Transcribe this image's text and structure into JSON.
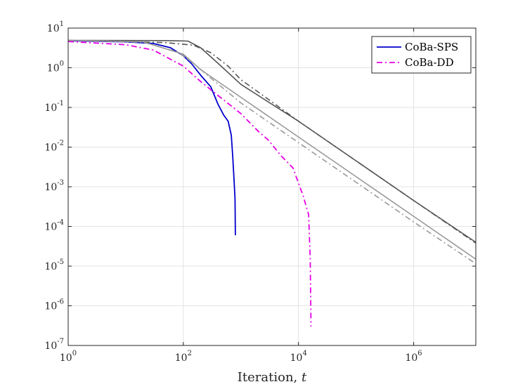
{
  "chart_data": {
    "type": "line",
    "title": "",
    "xlabel": "Iteration, ",
    "xlabel_var": "t",
    "ylabel": "",
    "xscale": "log",
    "yscale": "log",
    "xlim": [
      1,
      12000000
    ],
    "ylim": [
      1e-07,
      10
    ],
    "grid": true,
    "legend_position": "top-right",
    "x_ticks": [
      {
        "base": "10",
        "exp": "0",
        "value": 1
      },
      {
        "base": "10",
        "exp": "2",
        "value": 100
      },
      {
        "base": "10",
        "exp": "4",
        "value": 10000
      },
      {
        "base": "10",
        "exp": "6",
        "value": 1000000
      }
    ],
    "y_ticks": [
      {
        "base": "10",
        "exp": "1",
        "value": 10
      },
      {
        "base": "10",
        "exp": "0",
        "value": 1
      },
      {
        "base": "10",
        "exp": "-1",
        "value": 0.1
      },
      {
        "base": "10",
        "exp": "-2",
        "value": 0.01
      },
      {
        "base": "10",
        "exp": "-3",
        "value": 0.001
      },
      {
        "base": "10",
        "exp": "-4",
        "value": 0.0001
      },
      {
        "base": "10",
        "exp": "-5",
        "value": 1e-05
      },
      {
        "base": "10",
        "exp": "-6",
        "value": 1e-06
      },
      {
        "base": "10",
        "exp": "-7",
        "value": 1e-07
      }
    ],
    "series": [
      {
        "name": "CoBa-SPS",
        "in_legend": true,
        "color": "#0000cc",
        "dash": "solid",
        "width": 1.8,
        "points": [
          [
            1,
            4.8
          ],
          [
            10,
            4.5
          ],
          [
            30,
            4.1
          ],
          [
            60,
            3.2
          ],
          [
            100,
            2.0
          ],
          [
            140,
            1.25
          ],
          [
            200,
            0.65
          ],
          [
            300,
            0.33
          ],
          [
            400,
            0.12
          ],
          [
            500,
            0.065
          ],
          [
            600,
            0.045
          ],
          [
            680,
            0.02
          ],
          [
            720,
            0.006
          ],
          [
            760,
            0.0015
          ],
          [
            790,
            0.0005
          ],
          [
            800,
            6e-05
          ]
        ]
      },
      {
        "name": "CoBa-DD",
        "in_legend": true,
        "color": "#e600e6",
        "dash": "8,4,2,4",
        "width": 1.8,
        "points": [
          [
            1,
            4.6
          ],
          [
            10,
            3.8
          ],
          [
            30,
            2.8
          ],
          [
            100,
            1.1
          ],
          [
            200,
            0.45
          ],
          [
            400,
            0.2
          ],
          [
            1000,
            0.07
          ],
          [
            2000,
            0.025
          ],
          [
            3000,
            0.015
          ],
          [
            5000,
            0.006
          ],
          [
            8000,
            0.003
          ],
          [
            12000,
            0.0006
          ],
          [
            15000,
            0.0002
          ],
          [
            16000,
            1.5e-05
          ],
          [
            16500,
            3e-07
          ]
        ]
      },
      {
        "name": "reference-dark-solid",
        "in_legend": false,
        "color": "#555555",
        "dash": "solid",
        "width": 1.6,
        "points": [
          [
            1,
            4.9
          ],
          [
            50,
            4.85
          ],
          [
            120,
            4.7
          ],
          [
            200,
            3.2
          ],
          [
            400,
            1.3
          ],
          [
            1000,
            0.38
          ],
          [
            10000,
            0.045
          ],
          [
            100000,
            0.0045
          ],
          [
            1000000,
            0.00045
          ],
          [
            12000000,
            4e-05
          ]
        ]
      },
      {
        "name": "reference-dark-dashdot",
        "in_legend": false,
        "color": "#555555",
        "dash": "8,4,2,4",
        "width": 1.6,
        "points": [
          [
            1,
            4.9
          ],
          [
            50,
            4.3
          ],
          [
            150,
            3.7
          ],
          [
            300,
            2.4
          ],
          [
            600,
            1.1
          ],
          [
            1000,
            0.5
          ],
          [
            3000,
            0.16
          ],
          [
            10000,
            0.045
          ],
          [
            100000,
            0.0045
          ],
          [
            1000000,
            0.00045
          ],
          [
            12000000,
            3.8e-05
          ]
        ]
      },
      {
        "name": "reference-light-solid",
        "in_legend": false,
        "color": "#999999",
        "dash": "solid",
        "width": 1.6,
        "points": [
          [
            1,
            4.9
          ],
          [
            20,
            4.5
          ],
          [
            100,
            2.2
          ],
          [
            200,
            0.9
          ],
          [
            400,
            0.45
          ],
          [
            1000,
            0.18
          ],
          [
            10000,
            0.018
          ],
          [
            100000,
            0.0018
          ],
          [
            1000000,
            0.00018
          ],
          [
            12000000,
            1.5e-05
          ]
        ]
      },
      {
        "name": "reference-light-dashdot",
        "in_legend": false,
        "color": "#999999",
        "dash": "8,4,2,4",
        "width": 1.6,
        "points": [
          [
            1,
            4.9
          ],
          [
            20,
            4.4
          ],
          [
            80,
            2.5
          ],
          [
            150,
            1.3
          ],
          [
            300,
            0.55
          ],
          [
            1000,
            0.13
          ],
          [
            10000,
            0.013
          ],
          [
            100000,
            0.0013
          ],
          [
            1000000,
            0.00013
          ],
          [
            12000000,
            1.15e-05
          ]
        ]
      }
    ]
  }
}
